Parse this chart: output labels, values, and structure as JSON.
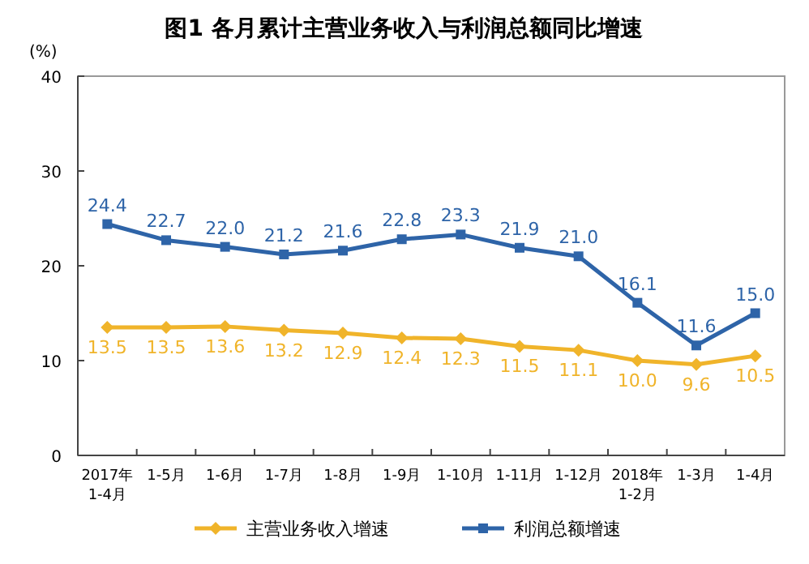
{
  "chart_data": {
    "type": "line",
    "title": "图1  各月累计主营业务收入与利润总额同比增速",
    "ylabel": "(%)",
    "categories": [
      "2017年\n1-4月",
      "1-5月",
      "1-6月",
      "1-7月",
      "1-8月",
      "1-9月",
      "1-10月",
      "1-11月",
      "1-12月",
      "2018年\n1-2月",
      "1-3月",
      "1-4月"
    ],
    "series": [
      {
        "name": "主营业务收入增速",
        "color": "#f0b42a",
        "marker": "diamond",
        "values": [
          13.5,
          13.5,
          13.6,
          13.2,
          12.9,
          12.4,
          12.3,
          11.5,
          11.1,
          10.0,
          9.6,
          10.5
        ],
        "value_labels": [
          "13.5",
          "13.5",
          "13.6",
          "13.2",
          "12.9",
          "12.4",
          "12.3",
          "11.5",
          "11.1",
          "10.0",
          "9.6",
          "10.5"
        ]
      },
      {
        "name": "利润总额增速",
        "color": "#2e64a8",
        "marker": "square",
        "values": [
          24.4,
          22.7,
          22.0,
          21.2,
          21.6,
          22.8,
          23.3,
          21.9,
          21.0,
          16.1,
          11.6,
          15.0
        ],
        "value_labels": [
          "24.4",
          "22.7",
          "22.0",
          "21.2",
          "21.6",
          "22.8",
          "23.3",
          "21.9",
          "21.0",
          "16.1",
          "11.6",
          "15.0"
        ]
      }
    ],
    "ylim": [
      0,
      40
    ],
    "yticks": [
      0,
      10,
      20,
      30,
      40
    ],
    "legend": "bottom",
    "grid": false
  }
}
